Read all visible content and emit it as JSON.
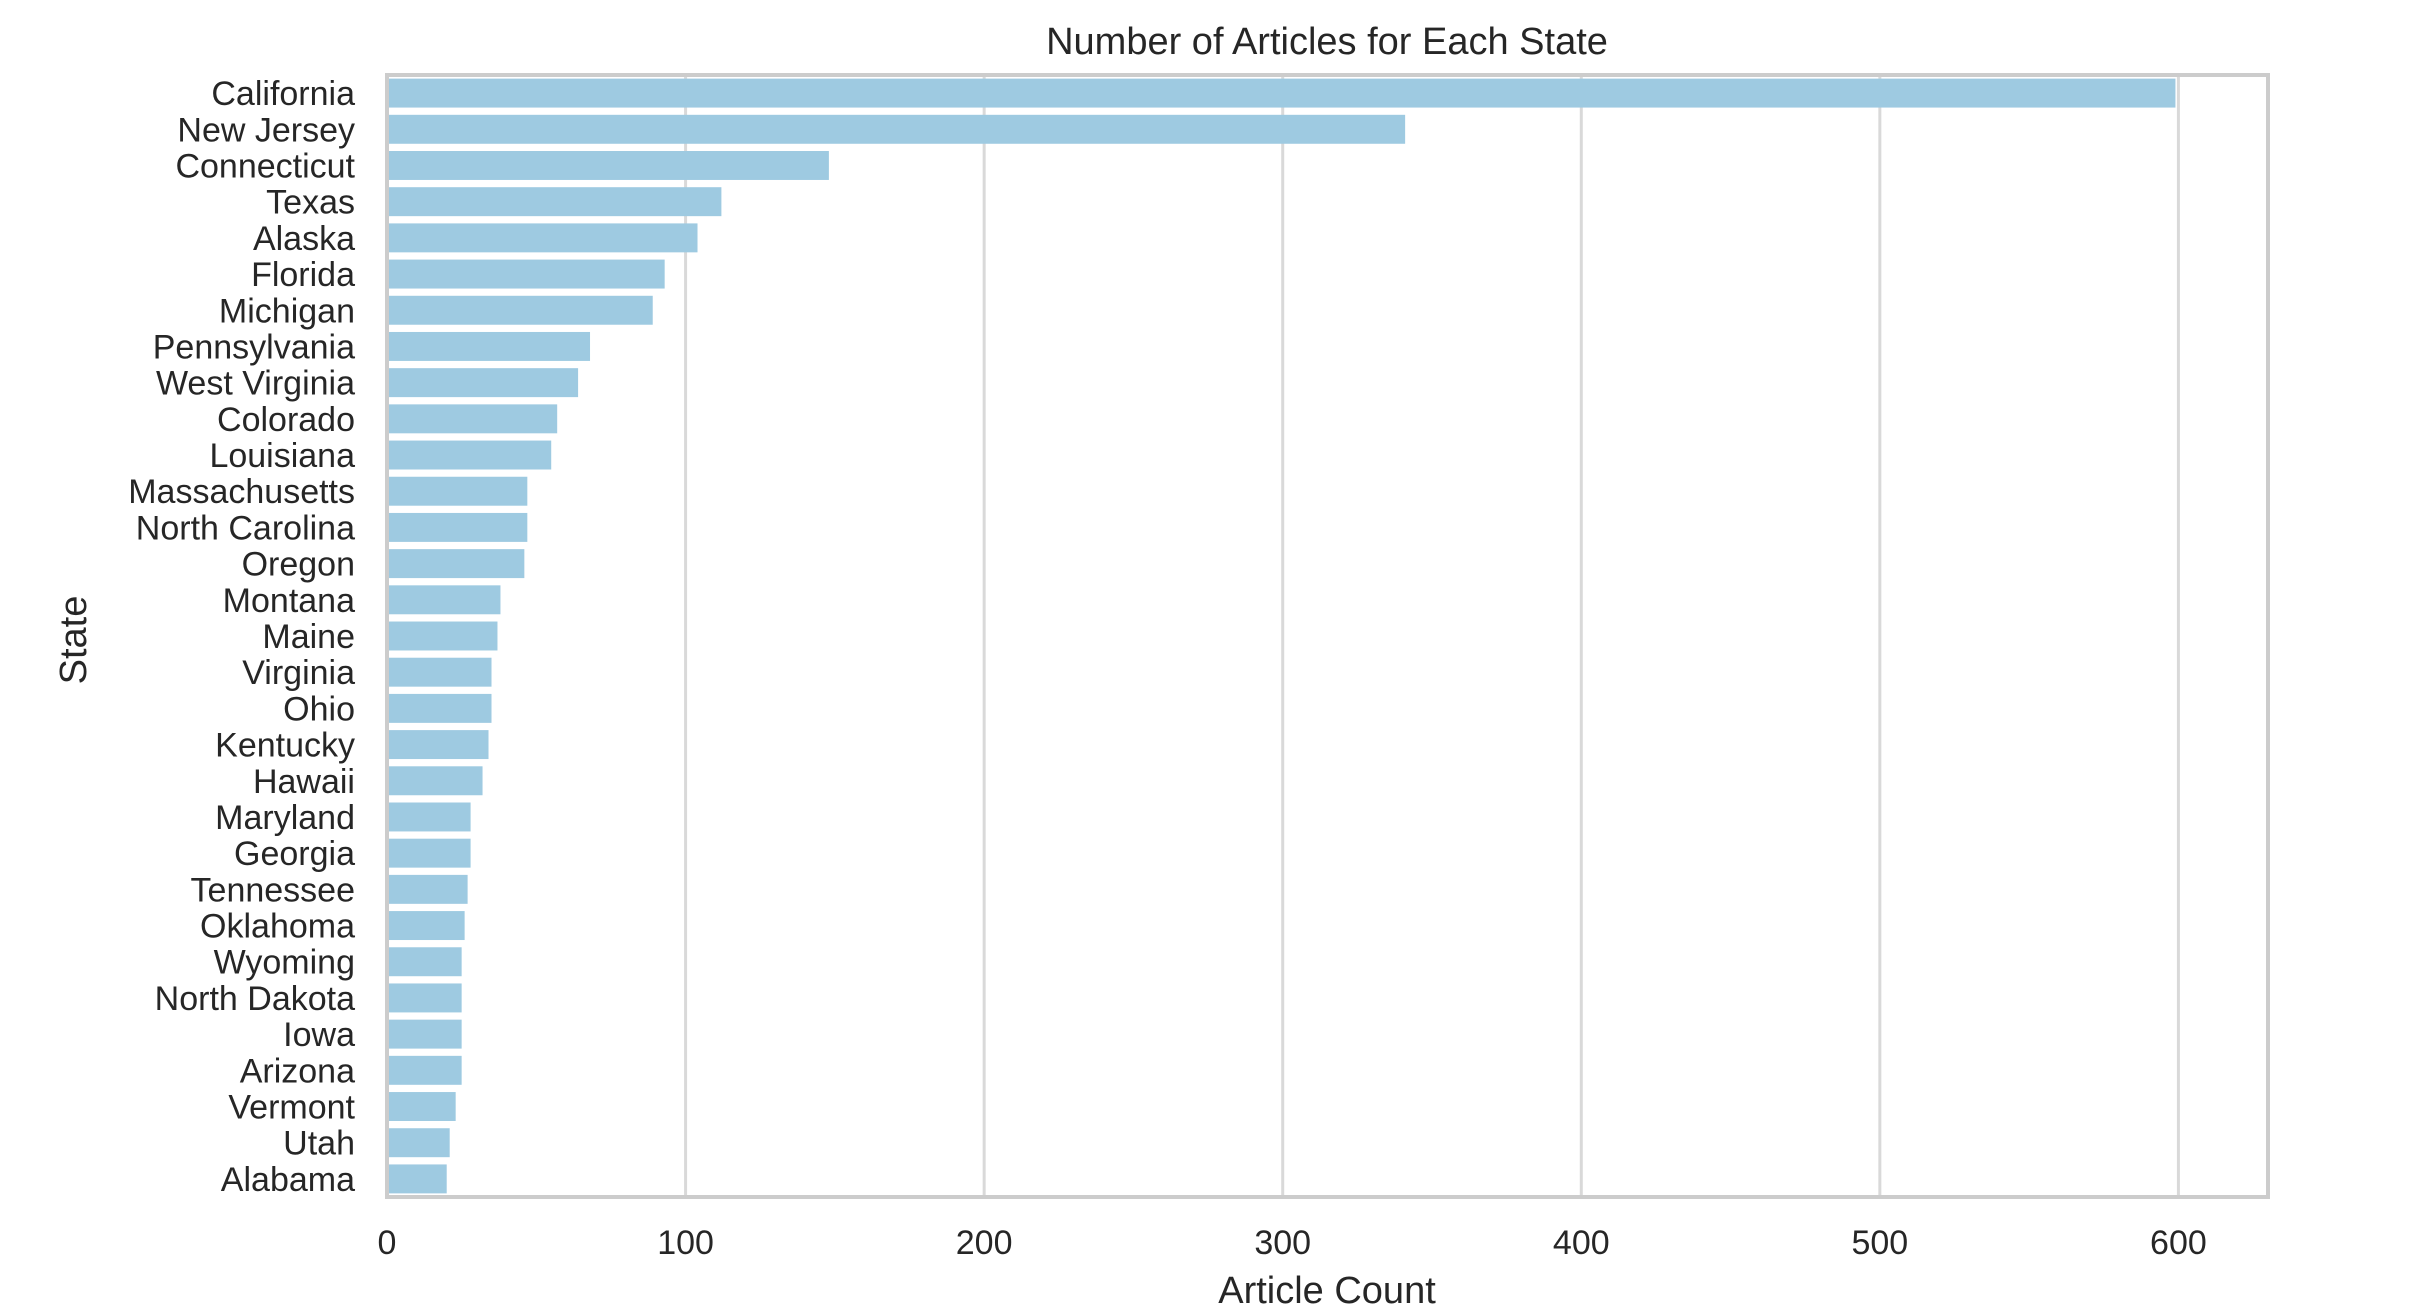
{
  "chart_data": {
    "type": "bar",
    "orientation": "horizontal",
    "title": "Number of Articles for Each State",
    "xlabel": "Article Count",
    "ylabel": "State",
    "xlim": [
      0,
      630
    ],
    "x_ticks": [
      0,
      100,
      200,
      300,
      400,
      500,
      600
    ],
    "grid": "vertical",
    "bar_color": "#9ecae1",
    "categories": [
      "California",
      "New Jersey",
      "Connecticut",
      "Texas",
      "Alaska",
      "Florida",
      "Michigan",
      "Pennsylvania",
      "West Virginia",
      "Colorado",
      "Louisiana",
      "Massachusetts",
      "North Carolina",
      "Oregon",
      "Montana",
      "Maine",
      "Virginia",
      "Ohio",
      "Kentucky",
      "Hawaii",
      "Maryland",
      "Georgia",
      "Tennessee",
      "Oklahoma",
      "Wyoming",
      "North Dakota",
      "Iowa",
      "Arizona",
      "Vermont",
      "Utah",
      "Alabama"
    ],
    "values": [
      599,
      341,
      148,
      112,
      104,
      93,
      89,
      68,
      64,
      57,
      55,
      47,
      47,
      46,
      38,
      37,
      35,
      35,
      34,
      32,
      28,
      28,
      27,
      26,
      25,
      25,
      25,
      25,
      23,
      21,
      20
    ]
  }
}
